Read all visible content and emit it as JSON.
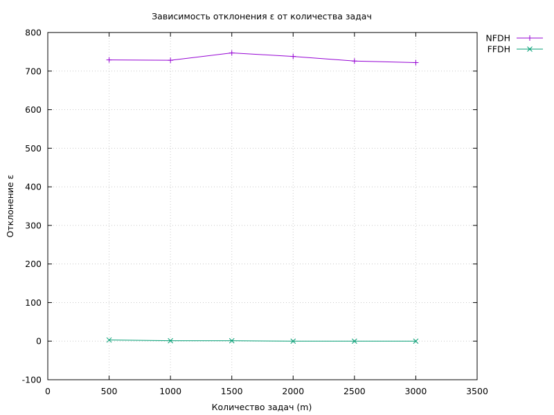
{
  "chart_data": {
    "type": "line",
    "title": "Зависимость отклонения ε от количества задач",
    "xlabel": "Количество задач (m)",
    "ylabel": "Отклонение ε",
    "xlim": [
      0,
      3500
    ],
    "ylim": [
      -100,
      800
    ],
    "xticks": [
      0,
      500,
      1000,
      1500,
      2000,
      2500,
      3000,
      3500
    ],
    "yticks": [
      -100,
      0,
      100,
      200,
      300,
      400,
      500,
      600,
      700,
      800
    ],
    "grid": true,
    "legend_position": "top-right, outside plot area",
    "series": [
      {
        "name": "NFDH",
        "color": "#9400d3",
        "marker": "plus",
        "x": [
          500,
          1000,
          1500,
          2000,
          2500,
          3000
        ],
        "y": [
          729,
          728,
          747,
          738,
          726,
          722
        ]
      },
      {
        "name": "FFDH",
        "color": "#009e73",
        "marker": "cross",
        "x": [
          500,
          1000,
          1500,
          2000,
          2500,
          3000
        ],
        "y": [
          3,
          1,
          1,
          0,
          0,
          0
        ]
      }
    ]
  }
}
